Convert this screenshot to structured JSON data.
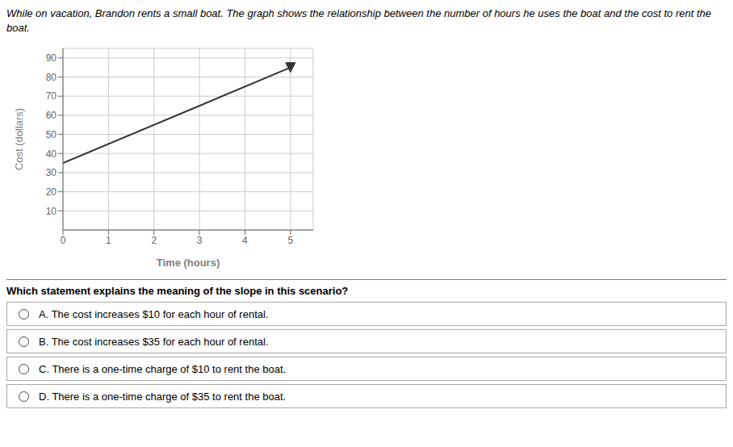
{
  "chart_data": {
    "type": "line",
    "title": "While on vacation, Brandon rents a small boat. The graph shows the relationship between the number of hours he uses the boat and the cost to rent the boat.",
    "xlabel": "Time (hours)",
    "ylabel": "Cost (dollars)",
    "x": [
      0,
      5
    ],
    "values": [
      35,
      85
    ],
    "color": "#333333",
    "marker": "triangle",
    "xlim": [
      0,
      5.5
    ],
    "ylim": [
      0,
      95
    ],
    "xticks": [
      0,
      1,
      2,
      3,
      4,
      5
    ],
    "yticks": [
      10,
      20,
      30,
      40,
      50,
      60,
      70,
      80,
      90
    ],
    "grid": true,
    "annotations": [
      "Which statement explains the meaning of the slope in this scenario?",
      "A.  The cost increases $10 for each hour of rental.",
      "B.  The cost increases $35 for each hour of rental.",
      "C.  There is a one-time charge of $10 to rent the boat.",
      "D.  There is a one-time charge of $35 to rent the boat."
    ]
  }
}
